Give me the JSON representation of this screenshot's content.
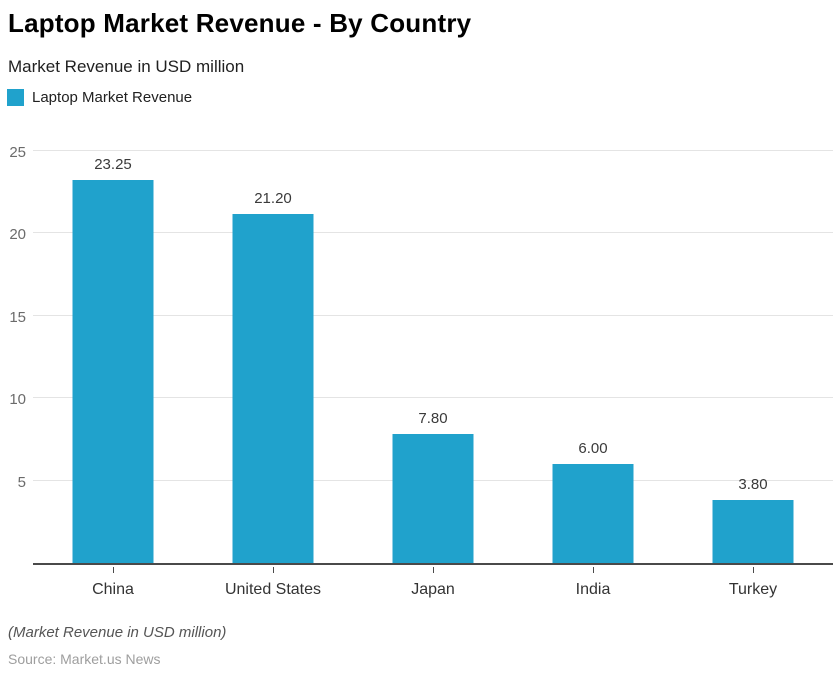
{
  "header": {
    "title": "Laptop Market Revenue - By Country",
    "subtitle": "Market Revenue in USD million"
  },
  "legend": {
    "label": "Laptop Market Revenue",
    "swatch_color": "#20A2CC"
  },
  "footer": {
    "note": "(Market Revenue in USD million)",
    "source": "Source: Market.us News"
  },
  "colors": {
    "bar": "#20A2CC",
    "gridline": "#e4e4e4",
    "axis": "#4a4a4a",
    "value_label": "#3a3a3a",
    "y_tick_label": "#6b6b6b",
    "category_label": "#333333",
    "note": "#555555",
    "source": "#9e9e9e"
  },
  "chart_data": {
    "type": "bar",
    "title": "Laptop Market Revenue - By Country",
    "subtitle": "Market Revenue in USD million",
    "series_name": "Laptop Market Revenue",
    "categories": [
      "China",
      "United States",
      "Japan",
      "India",
      "Turkey"
    ],
    "values": [
      23.25,
      21.2,
      7.8,
      6.0,
      3.8
    ],
    "value_labels": [
      "23.25",
      "21.20",
      "7.80",
      "6.00",
      "3.80"
    ],
    "xlabel": "",
    "ylabel": "",
    "ylim": [
      0,
      25
    ],
    "yticks": [
      5,
      10,
      15,
      20,
      25
    ],
    "grid": true,
    "legend_position": "top-left",
    "bar_color": "#20A2CC"
  }
}
